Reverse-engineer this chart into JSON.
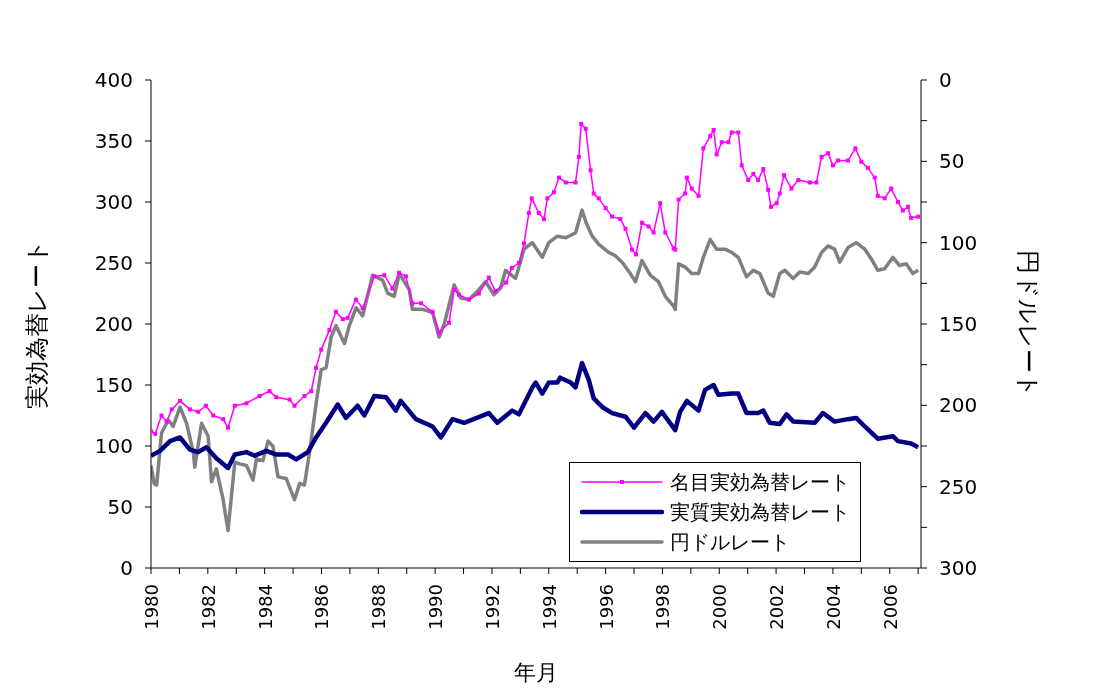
{
  "chart_data": {
    "type": "line",
    "xlabel": "年月",
    "ylabel": "実効為替レート",
    "y2label": "円ドルレート",
    "legend": "bottom right",
    "xlim": [
      1980,
      2007.1
    ],
    "xticks": [
      1980,
      {
        "value": 1981,
        "label": null
      },
      1982,
      {
        "value": 1983,
        "label": null
      },
      1984,
      {
        "value": 1985,
        "label": null
      },
      1986,
      {
        "value": 1987,
        "label": null
      },
      1988,
      {
        "value": 1989,
        "label": null
      },
      1990,
      {
        "value": 1991,
        "label": null
      },
      1992,
      {
        "value": 1993,
        "label": null
      },
      1994,
      {
        "value": 1995,
        "label": null
      },
      1996,
      {
        "value": 1997,
        "label": null
      },
      1998,
      {
        "value": 1999,
        "label": null
      },
      2000,
      {
        "value": 2001,
        "label": null
      },
      2002,
      {
        "value": 2003,
        "label": null
      },
      2004,
      {
        "value": 2005,
        "label": null
      },
      2006,
      {
        "value": 2007,
        "label": null
      }
    ],
    "ylim": [
      0,
      400
    ],
    "yticks": [
      0,
      50,
      100,
      150,
      200,
      250,
      300,
      350,
      400
    ],
    "y2lim": [
      300,
      0
    ],
    "y2ticks": [
      0,
      {
        "value": 25,
        "label": null
      },
      50,
      {
        "value": 75,
        "label": null
      },
      100,
      {
        "value": 125,
        "label": null
      },
      150,
      {
        "value": 175,
        "label": null
      },
      200,
      {
        "value": 225,
        "label": null
      },
      250,
      {
        "value": 275,
        "label": null
      },
      300
    ],
    "series": [
      {
        "name": "名目実効為替レート",
        "color": "#ff00ff",
        "marker": "square",
        "x": [
          1980.0,
          1980.15,
          1980.37,
          1980.55,
          1980.73,
          1981.02,
          1981.37,
          1981.66,
          1981.93,
          1982.19,
          1982.54,
          1982.71,
          1982.95,
          1983.36,
          1983.82,
          1984.17,
          1984.41,
          1984.88,
          1985.05,
          1985.4,
          1985.64,
          1985.81,
          1985.99,
          1986.28,
          1986.51,
          1986.75,
          1986.92,
          1987.21,
          1987.45,
          1987.86,
          1988.21,
          1988.5,
          1988.73,
          1988.97,
          1989.2,
          1989.5,
          1989.91,
          1990.14,
          1990.49,
          1990.67,
          1990.84,
          1991.19,
          1991.54,
          1991.89,
          1992.12,
          1992.5,
          1992.7,
          1992.95,
          1993.13,
          1993.3,
          1993.4,
          1993.65,
          1993.83,
          1993.95,
          1994.18,
          1994.36,
          1994.6,
          1994.94,
          1995.06,
          1995.14,
          1995.3,
          1995.47,
          1995.58,
          1995.76,
          1996.0,
          1996.23,
          1996.52,
          1996.7,
          1996.93,
          1997.07,
          1997.28,
          1997.51,
          1997.69,
          1997.92,
          1998.1,
          1998.39,
          1998.45,
          1998.57,
          1998.8,
          1998.86,
          1999.03,
          1999.27,
          1999.44,
          1999.68,
          1999.8,
          1999.91,
          2000.09,
          2000.32,
          2000.44,
          2000.67,
          2000.79,
          2001.02,
          2001.2,
          2001.37,
          2001.55,
          2001.72,
          2001.82,
          2002.02,
          2002.13,
          2002.28,
          2002.54,
          2002.78,
          2003.19,
          2003.42,
          2003.6,
          2003.83,
          2004.0,
          2004.18,
          2004.53,
          2004.79,
          2005.0,
          2005.23,
          2005.47,
          2005.58,
          2005.82,
          2006.05,
          2006.29,
          2006.46,
          2006.64,
          2006.75,
          2007.0
        ],
        "values": [
          112,
          110,
          125,
          120,
          130,
          137,
          130,
          128,
          133,
          125,
          122,
          115,
          133,
          135,
          141,
          145,
          140,
          138,
          133,
          141,
          145,
          164,
          179,
          195,
          210,
          204,
          205,
          220,
          213,
          239,
          240,
          229,
          242,
          239,
          217,
          217,
          210,
          193,
          201,
          228,
          224,
          220,
          225,
          238,
          227,
          234,
          246,
          250,
          266,
          291,
          303,
          291,
          286,
          303,
          308,
          320,
          316,
          316,
          337,
          364,
          360,
          326,
          307,
          303,
          295,
          288,
          286,
          278,
          261,
          257,
          283,
          280,
          275,
          299,
          275,
          262,
          261,
          302,
          307,
          320,
          311,
          305,
          344,
          354,
          359,
          339,
          349,
          349,
          357,
          357,
          330,
          318,
          323,
          318,
          327,
          310,
          296,
          299,
          307,
          322,
          311,
          318,
          316,
          316,
          337,
          340,
          330,
          334,
          334,
          344,
          333,
          328,
          320,
          305,
          303,
          311,
          300,
          293,
          296,
          287,
          288
        ]
      },
      {
        "name": "実質実効為替レート",
        "color": "#000080",
        "marker": "none",
        "x": [
          1980.0,
          1980.32,
          1980.67,
          1981.02,
          1981.37,
          1981.66,
          1981.95,
          1982.3,
          1982.71,
          1982.95,
          1983.36,
          1983.65,
          1984.06,
          1984.41,
          1984.82,
          1985.11,
          1985.52,
          1985.81,
          1986.16,
          1986.57,
          1986.86,
          1987.27,
          1987.51,
          1987.86,
          1988.27,
          1988.62,
          1988.79,
          1989.32,
          1989.91,
          1990.2,
          1990.61,
          1991.02,
          1991.89,
          1992.19,
          1992.71,
          1992.95,
          1993.25,
          1993.42,
          1993.54,
          1993.77,
          1994.0,
          1994.3,
          1994.4,
          1994.77,
          1994.94,
          1995.17,
          1995.41,
          1995.58,
          1995.88,
          1996.23,
          1996.7,
          1997.0,
          1997.4,
          1997.69,
          1997.98,
          1998.45,
          1998.62,
          1998.86,
          1999.27,
          1999.5,
          1999.8,
          1999.97,
          2000.44,
          2000.67,
          2000.96,
          2001.37,
          2001.55,
          2001.78,
          2002.13,
          2002.37,
          2002.6,
          2003.36,
          2003.65,
          2004.06,
          2004.53,
          2004.82,
          2005.12,
          2005.58,
          2006.11,
          2006.29,
          2006.75,
          2007.0
        ],
        "values": [
          92,
          96,
          104,
          107,
          97,
          95,
          99,
          90,
          82,
          93,
          95,
          92,
          96,
          93,
          93,
          89,
          95,
          107,
          119,
          134,
          123,
          133,
          125,
          141,
          140,
          129,
          137,
          122,
          116,
          107,
          122,
          119,
          127,
          119,
          129,
          126,
          140,
          148,
          152,
          143,
          152,
          152,
          156,
          152,
          148,
          168,
          154,
          139,
          132,
          127,
          124,
          115,
          127,
          120,
          128,
          113,
          128,
          137,
          129,
          146,
          150,
          142,
          143,
          143,
          127,
          127,
          129,
          119,
          118,
          126,
          120,
          119,
          127,
          120,
          122,
          123,
          116,
          106,
          108,
          104,
          102,
          99
        ]
      },
      {
        "name": "円ドルレート",
        "color": "#808080",
        "marker": "none",
        "axis": "y2",
        "x": [
          1980.0,
          1980.11,
          1980.2,
          1980.37,
          1980.61,
          1980.78,
          1981.02,
          1981.25,
          1981.49,
          1981.54,
          1981.78,
          1982.01,
          1982.13,
          1982.3,
          1982.54,
          1982.71,
          1982.95,
          1983.12,
          1983.36,
          1983.59,
          1983.71,
          1983.94,
          1984.12,
          1984.29,
          1984.47,
          1984.76,
          1985.05,
          1985.23,
          1985.4,
          1985.58,
          1985.81,
          1985.99,
          1986.16,
          1986.34,
          1986.51,
          1986.81,
          1986.98,
          1987.22,
          1987.45,
          1987.8,
          1988.15,
          1988.33,
          1988.56,
          1988.74,
          1989.09,
          1989.2,
          1989.56,
          1989.91,
          1990.14,
          1990.32,
          1990.67,
          1990.9,
          1991.19,
          1991.43,
          1991.78,
          1992.07,
          1992.3,
          1992.48,
          1992.83,
          1993.13,
          1993.42,
          1993.77,
          1994.0,
          1994.3,
          1994.6,
          1994.94,
          1995.17,
          1995.32,
          1995.53,
          1995.76,
          1996.11,
          1996.34,
          1996.58,
          1996.87,
          1997.05,
          1997.28,
          1997.57,
          1997.86,
          1998.1,
          1998.39,
          1998.45,
          1998.57,
          1998.8,
          1999.03,
          1999.27,
          1999.44,
          1999.68,
          1999.91,
          2000.2,
          2000.44,
          2000.67,
          2000.96,
          2001.2,
          2001.43,
          2001.72,
          2001.9,
          2002.13,
          2002.31,
          2002.6,
          2002.83,
          2003.13,
          2003.36,
          2003.6,
          2003.83,
          2004.06,
          2004.24,
          2004.53,
          2004.82,
          2005.12,
          2005.35,
          2005.58,
          2005.82,
          2006.11,
          2006.34,
          2006.58,
          2006.81,
          2007.0
        ],
        "values": [
          237,
          248,
          249,
          217,
          209,
          213,
          201,
          211,
          229,
          238,
          211,
          219,
          247,
          239,
          258,
          277,
          235,
          236,
          237,
          246,
          233,
          234,
          222,
          225,
          244,
          245,
          258,
          248,
          249,
          229,
          199,
          178,
          177,
          158,
          151,
          162,
          151,
          140,
          145,
          120,
          123,
          131,
          133,
          119,
          129,
          141,
          141,
          143,
          158,
          150,
          126,
          134,
          135,
          131,
          124,
          132,
          128,
          117,
          122,
          104,
          100,
          109,
          100,
          96,
          97,
          94,
          80,
          88,
          96,
          101,
          106,
          108,
          112,
          119,
          124,
          111,
          120,
          124,
          133,
          139,
          141,
          113,
          115,
          119,
          119,
          109,
          98,
          104,
          104,
          106,
          109,
          121,
          117,
          119,
          131,
          133,
          119,
          117,
          122,
          118,
          119,
          115,
          106,
          102,
          104,
          112,
          103,
          100,
          104,
          110,
          117,
          116,
          109,
          114,
          113,
          119,
          117
        ]
      }
    ]
  }
}
